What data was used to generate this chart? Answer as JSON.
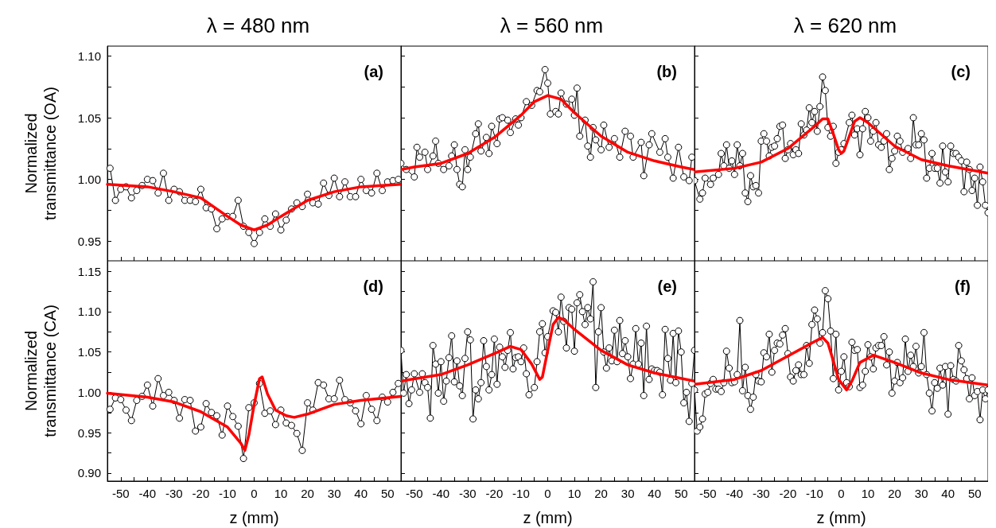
{
  "chart_data": [
    {
      "type": "line",
      "title": "λ = 480 nm",
      "ylabel": "Normalized\ntransmittance (OA)",
      "annotations": [
        "(a)"
      ],
      "tick_labels": "y",
      "grid": false,
      "xlim": [
        -55,
        55
      ],
      "ylim": [
        0.934,
        1.108
      ],
      "xticks": [
        {
          "value": -55,
          "label": null
        },
        -50,
        {
          "value": -45,
          "label": null
        },
        -40,
        {
          "value": -35,
          "label": null
        },
        -30,
        {
          "value": -25,
          "label": null
        },
        -20,
        {
          "value": -15,
          "label": null
        },
        -10,
        {
          "value": -5,
          "label": null
        },
        0,
        {
          "value": 5,
          "label": null
        },
        10,
        {
          "value": 15,
          "label": null
        },
        20,
        {
          "value": 25,
          "label": null
        },
        30,
        {
          "value": 35,
          "label": null
        },
        40,
        {
          "value": 45,
          "label": null
        },
        50,
        {
          "value": 55,
          "label": null
        }
      ],
      "yticks": [
        {
          "value": 0.95,
          "label": "0.95"
        },
        {
          "value": 0.975,
          "label": null
        },
        {
          "value": 1.0,
          "label": "1.00"
        },
        {
          "value": 1.025,
          "label": null
        },
        {
          "value": 1.05,
          "label": "1.05"
        },
        {
          "value": 1.075,
          "label": null
        },
        {
          "value": 1.1,
          "label": "1.10"
        }
      ],
      "series": [
        {
          "type": "line",
          "color": "#000000",
          "marker": "circle",
          "x": [
            -54,
            -52,
            -50,
            -48,
            -46,
            -44,
            -42,
            -40,
            -38,
            -36,
            -34,
            -32,
            -30,
            -28,
            -26,
            -24,
            -22,
            -20,
            -18,
            -16,
            -14,
            -12,
            -10,
            -8,
            -6,
            -4,
            -2,
            0,
            2,
            4,
            6,
            8,
            10,
            12,
            14,
            16,
            18,
            20,
            22,
            24,
            26,
            28,
            30,
            32,
            34,
            36,
            38,
            40,
            42,
            44,
            46,
            48,
            50,
            52,
            54
          ],
          "values": [
            1.009,
            0.983,
            0.992,
            0.994,
            0.985,
            0.991,
            0.995,
            1.0,
            0.999,
            0.989,
            1.005,
            0.983,
            0.992,
            0.99,
            0.983,
            0.983,
            0.982,
            0.992,
            0.977,
            0.976,
            0.96,
            0.968,
            0.97,
            0.97,
            0.983,
            0.962,
            0.957,
            0.948,
            0.957,
            0.968,
            0.962,
            0.972,
            0.959,
            0.967,
            0.976,
            0.981,
            0.978,
            0.988,
            0.981,
            0.98,
            0.997,
            0.987,
            1.001,
            0.986,
            0.998,
            0.986,
            0.986,
            1.0,
            0.991,
            0.989,
            1.005,
            0.991,
            0.998,
            0.999,
            1.0
          ]
        },
        {
          "type": "line",
          "color": "#ff0000",
          "marker": "none",
          "x": [
            -55,
            -40,
            -30,
            -20,
            -10,
            -5,
            0,
            5,
            10,
            20,
            30,
            40,
            55
          ],
          "values": [
            0.996,
            0.994,
            0.99,
            0.985,
            0.97,
            0.963,
            0.959,
            0.963,
            0.97,
            0.983,
            0.99,
            0.994,
            0.996
          ]
        }
      ]
    },
    {
      "type": "line",
      "title": "λ = 560 nm",
      "annotations": [
        "(b)"
      ],
      "tick_labels": false,
      "grid": false,
      "xlim": [
        -55,
        55
      ],
      "ylim": [
        0.934,
        1.108
      ],
      "xticks": [
        -55,
        -50,
        -45,
        -40,
        -35,
        -30,
        -25,
        -20,
        -15,
        -10,
        -5,
        0,
        5,
        10,
        15,
        20,
        25,
        30,
        35,
        40,
        45,
        50,
        55
      ],
      "yticks": [
        0.95,
        0.975,
        1.0,
        1.025,
        1.05,
        1.075,
        1.1
      ],
      "series": [
        {
          "type": "line",
          "color": "#000000",
          "marker": "circle",
          "x": [
            -55,
            -53,
            -50,
            -49,
            -48,
            -46,
            -45,
            -43,
            -42,
            -41,
            -39,
            -37,
            -36,
            -35,
            -34,
            -33,
            -32,
            -31,
            -30,
            -29,
            -27,
            -26,
            -25,
            -23,
            -22,
            -21,
            -19,
            -18,
            -17,
            -15,
            -14,
            -12,
            -11,
            -10,
            -8,
            -6,
            -4,
            -3,
            -1,
            0,
            1,
            3,
            4,
            5,
            7,
            9,
            10,
            11,
            12,
            14,
            15,
            16,
            17,
            18,
            20,
            21,
            23,
            25,
            27,
            29,
            31,
            32,
            35,
            36,
            38,
            39,
            42,
            44,
            45,
            47,
            49,
            51,
            53,
            54
          ],
          "values": [
            1.013,
            1.008,
            1.002,
            1.026,
            1.018,
            1.022,
            1.008,
            1.019,
            1.031,
            1.013,
            1.008,
            1.011,
            1.019,
            1.028,
            1.008,
            0.996,
            0.994,
            1.024,
            1.008,
            1.018,
            1.037,
            1.045,
            1.023,
            1.034,
            1.021,
            1.043,
            1.029,
            1.049,
            1.05,
            1.048,
            1.038,
            1.049,
            1.044,
            1.05,
            1.063,
            1.06,
            1.072,
            1.071,
            1.089,
            1.078,
            1.053,
            1.055,
            1.053,
            1.07,
            1.061,
            1.065,
            1.052,
            1.074,
            1.035,
            1.048,
            1.027,
            1.018,
            1.042,
            1.032,
            1.024,
            1.044,
            1.026,
            1.033,
            1.018,
            1.039,
            1.035,
            1.018,
            1.03,
            1.003,
            1.028,
            1.037,
            1.022,
            1.033,
            1.018,
            1.001,
            1.026,
            1.002,
            0.999,
            1.018
          ]
        },
        {
          "type": "line",
          "color": "#ff0000",
          "marker": "none",
          "x": [
            -55,
            -50,
            -40,
            -30,
            -20,
            -10,
            -5,
            0,
            5,
            10,
            20,
            30,
            40,
            50,
            55
          ],
          "values": [
            1.008,
            1.01,
            1.013,
            1.021,
            1.034,
            1.052,
            1.063,
            1.068,
            1.065,
            1.054,
            1.035,
            1.022,
            1.015,
            1.01,
            1.008
          ]
        }
      ]
    },
    {
      "type": "line",
      "title": "λ = 620 nm",
      "annotations": [
        "(c)"
      ],
      "tick_labels": false,
      "grid": false,
      "xlim": [
        -55,
        55
      ],
      "ylim": [
        0.934,
        1.108
      ],
      "xticks": [
        -55,
        -50,
        -45,
        -40,
        -35,
        -30,
        -25,
        -20,
        -15,
        -10,
        -5,
        0,
        5,
        10,
        15,
        20,
        25,
        30,
        35,
        40,
        45,
        50,
        55
      ],
      "yticks": [
        0.95,
        0.975,
        1.0,
        1.025,
        1.05,
        1.075,
        1.1
      ],
      "series": [
        {
          "type": "line",
          "color": "#000000",
          "marker": "circle",
          "x": [
            -55,
            -53,
            -52,
            -51,
            -49,
            -48,
            -46,
            -45,
            -44,
            -43,
            -42,
            -41,
            -40,
            -39,
            -38,
            -37,
            -36,
            -35,
            -34,
            -33,
            -32,
            -31,
            -30,
            -29,
            -28,
            -27,
            -26,
            -25,
            -24,
            -23,
            -22,
            -21,
            -20,
            -19,
            -18,
            -17,
            -16,
            -15,
            -14,
            -13,
            -12,
            -11,
            -10,
            -9,
            -8,
            -7,
            -6,
            -5,
            -4,
            -3,
            -2,
            -1,
            0,
            1,
            3,
            4,
            5,
            6,
            7,
            8,
            9,
            10,
            11,
            12,
            13,
            14,
            15,
            16,
            17,
            18,
            19,
            20,
            21,
            22,
            23,
            25,
            26,
            27,
            28,
            29,
            30,
            31,
            32,
            33,
            34,
            35,
            36,
            37,
            38,
            39,
            40,
            41,
            42,
            43,
            44,
            45,
            46,
            47,
            48,
            49,
            50,
            51,
            52,
            53,
            54,
            55
          ],
          "values": [
            0.999,
            0.984,
            0.989,
            1.001,
            0.996,
            1.001,
            1.004,
            1.021,
            1.011,
            1.028,
            1.009,
            1.015,
            1.004,
            1.028,
            1.011,
            1.021,
            0.989,
            0.982,
            1.003,
            0.994,
            0.995,
            0.989,
            1.031,
            1.037,
            1.031,
            1.019,
            1.026,
            1.027,
            1.033,
            1.043,
            1.044,
            1.017,
            1.024,
            1.029,
            1.02,
            1.024,
            1.021,
            1.045,
            1.036,
            1.04,
            1.058,
            1.046,
            1.055,
            1.039,
            1.059,
            1.083,
            1.072,
            1.042,
            1.035,
            1.043,
            1.013,
            1.022,
            1.024,
            1.029,
            1.046,
            1.052,
            1.036,
            1.041,
            1.02,
            1.041,
            1.055,
            1.05,
            1.031,
            1.039,
            1.046,
            1.028,
            1.026,
            1.031,
            1.037,
            1.008,
            1.017,
            1.023,
            1.035,
            1.031,
            1.022,
            1.025,
            1.017,
            1.05,
            1.028,
            1.028,
            1.037,
            1.032,
            1.001,
            1.009,
            1.021,
            1.009,
            1.009,
            0.997,
            1.027,
            1.006,
            0.998,
            1.027,
            1.021,
            1.021,
            1.018,
            1.015,
            0.99,
            1.014,
            1.008,
            0.991,
            1.001,
            0.979,
            1.01,
            0.998,
            0.979,
            0.973
          ]
        },
        {
          "type": "line",
          "color": "#ff0000",
          "marker": "none",
          "x": [
            -55,
            -40,
            -30,
            -20,
            -10,
            -7,
            -5,
            -3,
            -1,
            0,
            1,
            3,
            5,
            7,
            10,
            20,
            30,
            40,
            55
          ],
          "values": [
            1.006,
            1.009,
            1.014,
            1.025,
            1.043,
            1.049,
            1.049,
            1.037,
            1.024,
            1.021,
            1.023,
            1.035,
            1.047,
            1.05,
            1.046,
            1.027,
            1.016,
            1.011,
            1.005
          ]
        }
      ]
    },
    {
      "type": "line",
      "xlabel": "z (mm)",
      "ylabel": "Normalized\ntransmittance (CA)",
      "annotations": [
        "(d)"
      ],
      "grid": false,
      "xlim": [
        -55,
        55
      ],
      "ylim": [
        0.89,
        1.163
      ],
      "xticks": [
        {
          "value": -55,
          "label": null
        },
        -50,
        {
          "value": -45,
          "label": null
        },
        -40,
        {
          "value": -35,
          "label": null
        },
        -30,
        {
          "value": -25,
          "label": null
        },
        -20,
        {
          "value": -15,
          "label": null
        },
        -10,
        {
          "value": -5,
          "label": null
        },
        0,
        {
          "value": 5,
          "label": null
        },
        10,
        {
          "value": 15,
          "label": null
        },
        20,
        {
          "value": 25,
          "label": null
        },
        30,
        {
          "value": 35,
          "label": null
        },
        40,
        {
          "value": 45,
          "label": null
        },
        50,
        {
          "value": 55,
          "label": null
        }
      ],
      "yticks": [
        {
          "value": 0.9,
          "label": "0.90"
        },
        {
          "value": 0.925,
          "label": null
        },
        {
          "value": 0.95,
          "label": "0.95"
        },
        {
          "value": 0.975,
          "label": null
        },
        {
          "value": 1.0,
          "label": "1.00"
        },
        {
          "value": 1.025,
          "label": null
        },
        {
          "value": 1.05,
          "label": "1.05"
        },
        {
          "value": 1.075,
          "label": null
        },
        {
          "value": 1.1,
          "label": "1.10"
        },
        {
          "value": 1.125,
          "label": null
        },
        {
          "value": 1.15,
          "label": "1.15"
        }
      ],
      "series": [
        {
          "type": "line",
          "color": "#000000",
          "marker": "circle",
          "x": [
            -54,
            -52,
            -50,
            -48,
            -46,
            -44,
            -42,
            -40,
            -38,
            -36,
            -34,
            -32,
            -30,
            -28,
            -26,
            -24,
            -22,
            -20,
            -18,
            -16,
            -14,
            -12,
            -10,
            -8,
            -6,
            -4,
            -2,
            0,
            2,
            4,
            6,
            8,
            10,
            12,
            14,
            16,
            18,
            20,
            22,
            24,
            26,
            28,
            30,
            32,
            34,
            36,
            38,
            40,
            42,
            44,
            46,
            48,
            50,
            52,
            54
          ],
          "values": [
            0.979,
            0.993,
            0.991,
            0.978,
            0.965,
            0.99,
            0.995,
            1.009,
            0.983,
            1.017,
            0.996,
            1.0,
            0.99,
            0.968,
            0.991,
            0.99,
            0.952,
            0.957,
            0.986,
            0.975,
            0.971,
            0.947,
            0.983,
            0.97,
            0.958,
            0.918,
            0.981,
            0.987,
            1.011,
            0.974,
            0.977,
            0.96,
            0.978,
            0.962,
            0.959,
            0.949,
            0.928,
            0.987,
            0.978,
            1.012,
            1.009,
            0.992,
            0.992,
            1.015,
            0.991,
            0.987,
            0.977,
            0.961,
            0.996,
            0.979,
            0.965,
            0.994,
            0.988,
            1.0,
            1.011
          ]
        },
        {
          "type": "line",
          "color": "#ff0000",
          "marker": "none",
          "x": [
            -55,
            -40,
            -30,
            -20,
            -10,
            -5,
            -3.5,
            -2,
            0,
            2,
            3,
            5,
            8,
            12,
            15,
            20,
            30,
            40,
            55
          ],
          "values": [
            0.999,
            0.994,
            0.988,
            0.976,
            0.957,
            0.937,
            0.928,
            0.947,
            0.985,
            1.017,
            1.019,
            0.998,
            0.978,
            0.971,
            0.969,
            0.973,
            0.985,
            0.99,
            0.995
          ]
        }
      ]
    },
    {
      "type": "line",
      "xlabel": "z (mm)",
      "annotations": [
        "(e)"
      ],
      "tick_labels": "x",
      "grid": false,
      "xlim": [
        -55,
        55
      ],
      "ylim": [
        0.89,
        1.163
      ],
      "xticks": [
        {
          "value": -55,
          "label": null
        },
        -50,
        {
          "value": -45,
          "label": null
        },
        -40,
        {
          "value": -35,
          "label": null
        },
        -30,
        {
          "value": -25,
          "label": null
        },
        -20,
        {
          "value": -15,
          "label": null
        },
        -10,
        {
          "value": -5,
          "label": null
        },
        0,
        {
          "value": 5,
          "label": null
        },
        10,
        {
          "value": 15,
          "label": null
        },
        20,
        {
          "value": 25,
          "label": null
        },
        30,
        {
          "value": 35,
          "label": null
        },
        40,
        {
          "value": 45,
          "label": null
        },
        50,
        {
          "value": 55,
          "label": null
        }
      ],
      "yticks": [
        0.9,
        0.925,
        0.95,
        0.975,
        1.0,
        1.025,
        1.05,
        1.075,
        1.1,
        1.125,
        1.15
      ],
      "series": [
        {
          "type": "line",
          "color": "#000000",
          "marker": "circle",
          "x": [
            -55,
            -54,
            -53,
            -52,
            -51,
            -50,
            -48,
            -47,
            -46,
            -45,
            -44,
            -43,
            -42,
            -41,
            -40,
            -39,
            -38,
            -37,
            -36,
            -35,
            -34,
            -33,
            -32,
            -31,
            -30,
            -29,
            -28,
            -27,
            -26,
            -25,
            -24,
            -23,
            -22,
            -21,
            -20,
            -19,
            -18,
            -17,
            -16,
            -15,
            -14,
            -13,
            -12,
            -11,
            -10,
            -9,
            -8,
            -7,
            -5,
            -4,
            -3,
            -2,
            -1,
            0,
            2,
            3,
            4,
            5,
            6,
            7,
            8,
            9,
            10,
            11,
            12,
            13,
            14,
            15,
            16,
            17,
            18,
            19,
            20,
            21,
            22,
            23,
            24,
            25,
            26,
            27,
            28,
            29,
            30,
            31,
            32,
            33,
            34,
            35,
            36,
            37,
            38,
            39,
            40,
            41,
            42,
            43,
            44,
            45,
            46,
            47,
            48,
            49,
            50,
            51,
            52,
            53,
            54,
            55
          ],
          "values": [
            1.052,
            0.999,
            1.022,
            0.986,
            1.003,
            1.023,
            1.0,
            1.023,
            1.012,
            1.006,
            0.968,
            1.058,
            1.035,
            0.999,
            1.038,
            0.989,
            1.014,
            1.043,
            1.07,
            1.013,
            1.039,
            1.008,
            0.996,
            1.042,
            1.075,
            1.065,
            0.967,
            1.003,
            0.992,
            1.012,
            1.064,
            1.032,
            1.003,
            1.022,
            1.066,
            1.01,
            1.056,
            1.044,
            1.031,
            1.052,
            1.074,
            1.029,
            1.043,
            1.044,
            1.038,
            1.055,
            1.023,
            0.997,
            1.006,
            1.038,
            1.075,
            1.085,
            1.049,
            1.069,
            1.101,
            1.099,
            1.075,
            1.118,
            1.088,
            1.055,
            1.105,
            1.103,
            1.051,
            1.111,
            1.121,
            1.1,
            1.084,
            1.105,
            1.091,
            1.137,
            1.006,
            1.075,
            1.105,
            1.05,
            1.03,
            1.055,
            1.039,
            1.077,
            1.038,
            1.089,
            1.048,
            1.064,
            1.044,
            1.017,
            1.035,
            1.079,
            1.035,
            1.061,
            0.996,
            1.082,
            1.016,
            1.029,
            1.027,
            1.027,
            1.025,
            0.997,
            1.078,
            1.042,
            1.015,
            1.073,
            1.012,
            1.076,
            1.05,
            0.987,
            1.0,
            0.964,
            1.011,
            1.052
          ]
        },
        {
          "type": "line",
          "color": "#ff0000",
          "marker": "none",
          "x": [
            -55,
            -40,
            -30,
            -20,
            -14,
            -10,
            -6,
            -3,
            -2,
            0,
            2,
            4,
            6,
            10,
            20,
            30,
            40,
            55
          ],
          "values": [
            1.014,
            1.022,
            1.034,
            1.048,
            1.057,
            1.053,
            1.035,
            1.016,
            1.019,
            1.052,
            1.084,
            1.093,
            1.09,
            1.078,
            1.052,
            1.034,
            1.024,
            1.014
          ]
        }
      ]
    },
    {
      "type": "line",
      "xlabel": "z (mm)",
      "annotations": [
        "(f)"
      ],
      "tick_labels": "x",
      "grid": false,
      "xlim": [
        -55,
        55
      ],
      "ylim": [
        0.89,
        1.163
      ],
      "xticks": [
        {
          "value": -55,
          "label": null
        },
        -50,
        {
          "value": -45,
          "label": null
        },
        -40,
        {
          "value": -35,
          "label": null
        },
        -30,
        {
          "value": -25,
          "label": null
        },
        -20,
        {
          "value": -15,
          "label": null
        },
        -10,
        {
          "value": -5,
          "label": null
        },
        0,
        {
          "value": 5,
          "label": null
        },
        10,
        {
          "value": 15,
          "label": null
        },
        20,
        {
          "value": 25,
          "label": null
        },
        30,
        {
          "value": 35,
          "label": null
        },
        40,
        {
          "value": 45,
          "label": null
        },
        50,
        {
          "value": 55,
          "label": null
        }
      ],
      "yticks": [
        0.9,
        0.925,
        0.95,
        0.975,
        1.0,
        1.025,
        1.05,
        1.075,
        1.1,
        1.125,
        1.15
      ],
      "series": [
        {
          "type": "line",
          "color": "#000000",
          "marker": "circle",
          "x": [
            -55,
            -54,
            -53,
            -52,
            -51,
            -50,
            -49,
            -48,
            -47,
            -46,
            -45,
            -44,
            -43,
            -42,
            -41,
            -40,
            -39,
            -38,
            -37,
            -36,
            -35,
            -34,
            -33,
            -32,
            -31,
            -30,
            -29,
            -28,
            -27,
            -26,
            -25,
            -24,
            -23,
            -22,
            -21,
            -20,
            -19,
            -18,
            -17,
            -16,
            -15,
            -14,
            -13,
            -12,
            -11,
            -10,
            -9,
            -8,
            -7,
            -6,
            -5,
            -4,
            -3,
            -2,
            -1,
            0,
            1,
            2,
            3,
            4,
            5,
            6,
            7,
            8,
            9,
            10,
            11,
            12,
            13,
            14,
            15,
            16,
            17,
            18,
            19,
            20,
            21,
            22,
            23,
            24,
            25,
            26,
            27,
            28,
            29,
            30,
            31,
            32,
            33,
            34,
            35,
            36,
            37,
            38,
            39,
            40,
            41,
            42,
            43,
            44,
            45,
            46,
            47,
            48,
            49,
            50,
            51,
            52,
            53,
            54,
            55
          ],
          "values": [
            1.003,
            0.952,
            0.957,
            0.967,
            0.998,
            1.0,
            1.011,
            1.016,
            1.004,
            1.004,
            1.001,
            1.012,
            1.051,
            1.03,
            1.012,
            1.013,
            1.022,
            1.089,
            1.002,
            1.031,
            0.996,
            0.979,
            0.994,
            1.022,
            1.014,
            1.013,
            1.049,
            1.044,
            1.072,
            1.025,
            1.052,
            1.061,
            1.06,
            1.071,
            1.079,
            1.048,
            1.019,
            1.014,
            1.027,
            1.034,
            1.022,
            1.022,
            1.058,
            1.036,
            1.084,
            1.102,
            1.091,
            1.061,
            1.074,
            1.126,
            1.116,
            1.076,
            1.017,
            1.072,
            1.003,
            1.026,
            1.044,
            1.012,
            1.007,
            1.062,
            1.052,
            1.053,
            1.006,
            1.009,
            1.026,
            1.059,
            1.044,
            1.029,
            1.055,
            1.058,
            1.058,
            1.069,
            1.034,
            1.05,
            0.999,
            1.014,
            1.037,
            1.012,
            1.018,
            1.066,
            1.026,
            1.046,
            1.032,
            1.057,
            1.024,
            1.032,
            1.074,
            1.022,
            0.999,
            0.977,
            1.012,
            1.005,
            1.03,
            1.009,
            1.032,
            0.973,
            1.033,
            1.016,
            1.014,
            1.058,
            1.039,
            1.028,
            1.017,
            0.992,
            1.018,
            0.996,
            1.001,
            0.966,
            1.003,
            0.992,
            1.003
          ]
        },
        {
          "type": "line",
          "color": "#ff0000",
          "marker": "none",
          "x": [
            -55,
            -40,
            -30,
            -20,
            -10,
            -7,
            -5,
            -3,
            -1,
            2,
            4,
            7,
            12,
            20,
            30,
            40,
            55
          ],
          "values": [
            1.01,
            1.016,
            1.027,
            1.045,
            1.063,
            1.068,
            1.061,
            1.039,
            1.016,
            1.003,
            1.014,
            1.037,
            1.046,
            1.037,
            1.024,
            1.016,
            1.009
          ]
        }
      ]
    }
  ]
}
